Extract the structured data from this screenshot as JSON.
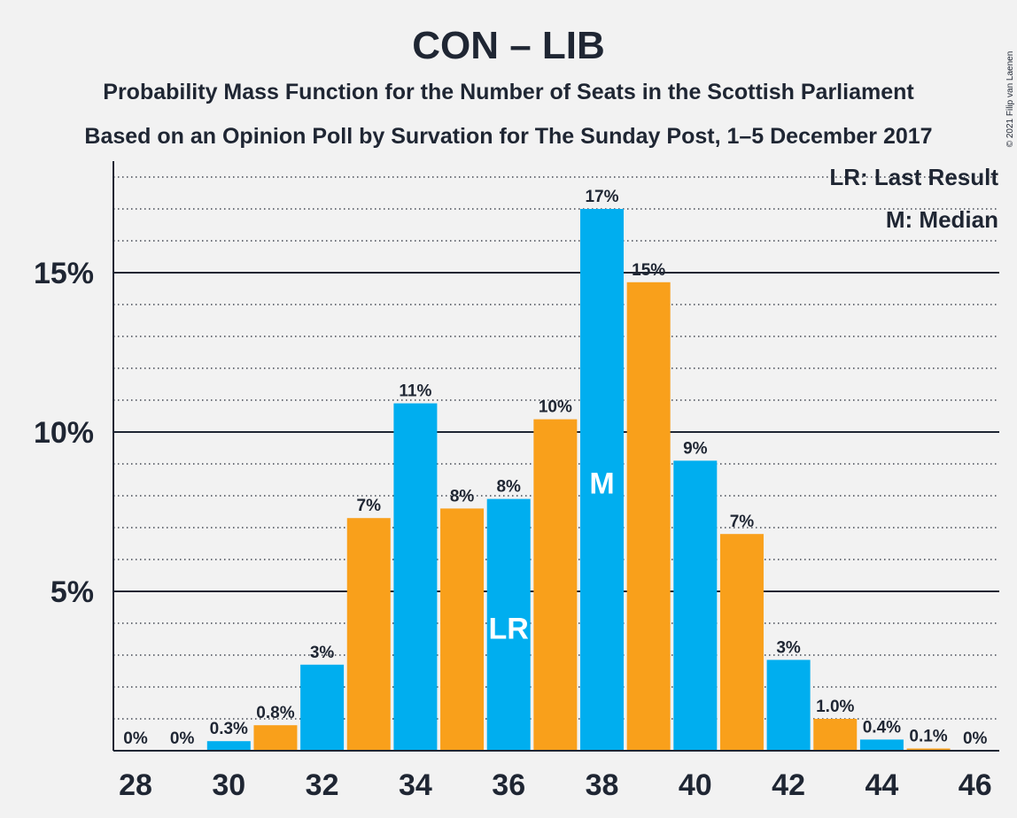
{
  "title": "CON – LIB",
  "subtitle1": "Probability Mass Function for the Number of Seats in the Scottish Parliament",
  "subtitle2": "Based on an Opinion Poll by Survation for The Sunday Post, 1–5 December 2017",
  "copyright": "© 2021 Filip van Laenen",
  "legend": {
    "last_result": "LR: Last Result",
    "median": "M: Median"
  },
  "colors": {
    "blue": "#00aeef",
    "orange": "#f9a01b",
    "text": "#1f2633",
    "background": "#f2f2f2"
  },
  "chart_data": {
    "type": "bar",
    "title": "CON – LIB",
    "xlabel": "",
    "ylabel": "",
    "ylim": [
      0,
      18.5
    ],
    "yticks": [
      5,
      10,
      15
    ],
    "ytick_labels": [
      "5%",
      "10%",
      "15%"
    ],
    "gridlines": {
      "major": [
        5,
        10,
        15
      ],
      "minor_step": 1
    },
    "xticks": [
      28,
      30,
      32,
      34,
      36,
      38,
      40,
      42,
      44,
      46
    ],
    "last_result_seat": 36,
    "median_seat": 38,
    "bars": [
      {
        "seat": 28,
        "value": 0.0,
        "label": "0%",
        "color": "blue"
      },
      {
        "seat": 29,
        "value": 0.0,
        "label": "0%",
        "color": "orange"
      },
      {
        "seat": 30,
        "value": 0.3,
        "label": "0.3%",
        "color": "blue"
      },
      {
        "seat": 31,
        "value": 0.8,
        "label": "0.8%",
        "color": "orange"
      },
      {
        "seat": 32,
        "value": 2.7,
        "label": "3%",
        "color": "blue"
      },
      {
        "seat": 33,
        "value": 7.3,
        "label": "7%",
        "color": "orange"
      },
      {
        "seat": 34,
        "value": 10.9,
        "label": "11%",
        "color": "blue"
      },
      {
        "seat": 35,
        "value": 7.6,
        "label": "8%",
        "color": "orange"
      },
      {
        "seat": 36,
        "value": 7.9,
        "label": "8%",
        "color": "blue",
        "marker": "LR"
      },
      {
        "seat": 37,
        "value": 10.4,
        "label": "10%",
        "color": "orange"
      },
      {
        "seat": 38,
        "value": 17.0,
        "label": "17%",
        "color": "blue",
        "marker": "M"
      },
      {
        "seat": 39,
        "value": 14.7,
        "label": "15%",
        "color": "orange"
      },
      {
        "seat": 40,
        "value": 9.1,
        "label": "9%",
        "color": "blue"
      },
      {
        "seat": 41,
        "value": 6.8,
        "label": "7%",
        "color": "orange"
      },
      {
        "seat": 42,
        "value": 2.85,
        "label": "3%",
        "color": "blue"
      },
      {
        "seat": 43,
        "value": 1.0,
        "label": "1.0%",
        "color": "orange"
      },
      {
        "seat": 44,
        "value": 0.35,
        "label": "0.4%",
        "color": "blue"
      },
      {
        "seat": 45,
        "value": 0.07,
        "label": "0.1%",
        "color": "orange"
      },
      {
        "seat": 46,
        "value": 0.0,
        "label": "0%",
        "color": "blue"
      }
    ]
  }
}
